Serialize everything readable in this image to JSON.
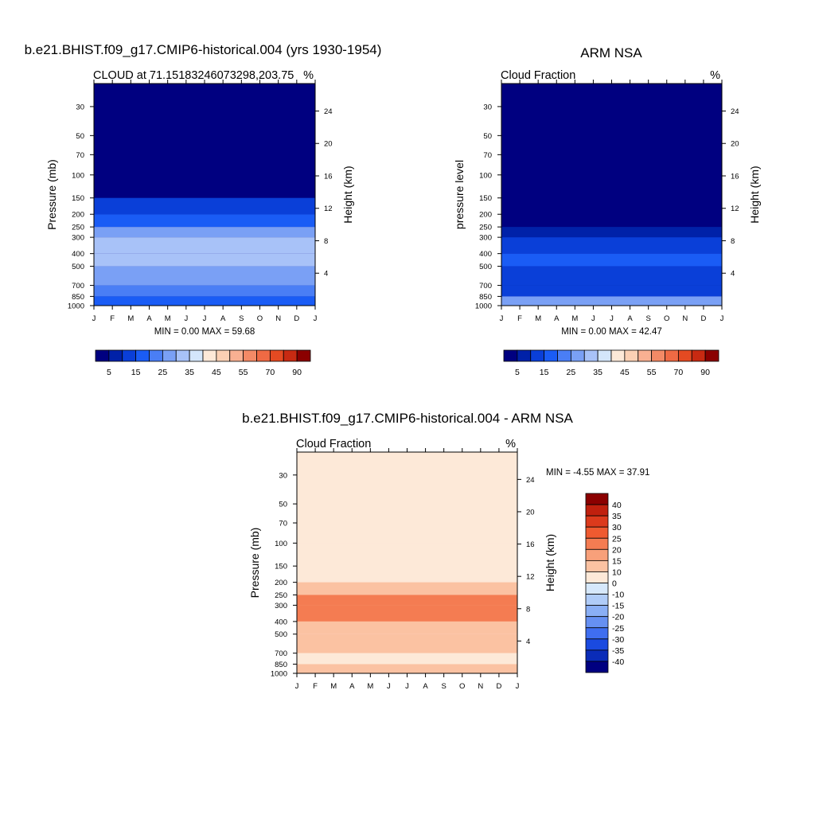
{
  "page_title": "",
  "chart_data": [
    {
      "id": "model",
      "type": "heatmap",
      "title": "b.e21.BHIST.f09_g17.CMIP6-historical.004 (yrs 1930-1954)",
      "subtitle_left": "CLOUD at 71.15183246073298,203.75",
      "subtitle_right": "%",
      "ylabel": "Pressure (mb)",
      "ylabel_right": "Height (km)",
      "x_ticks": [
        "J",
        "F",
        "M",
        "A",
        "M",
        "J",
        "J",
        "A",
        "S",
        "O",
        "N",
        "D",
        "J"
      ],
      "y_ticks": [
        30,
        50,
        70,
        100,
        150,
        200,
        250,
        300,
        400,
        500,
        700,
        850,
        1000
      ],
      "y_ticks_right": [
        24,
        20,
        16,
        12,
        8,
        4
      ],
      "ylim": [
        1000,
        20
      ],
      "minmax_text": "MIN =   0.00 MAX =  59.68",
      "colorbar_labels": [
        "5",
        "15",
        "25",
        "35",
        "45",
        "55",
        "70",
        "90"
      ],
      "colorbar_colors": [
        "#000080",
        "#0021a8",
        "#0a3fd8",
        "#1a5cf5",
        "#4a7ef5",
        "#7aa0f5",
        "#a8c2f8",
        "#d4e6fb",
        "#fde9d8",
        "#fbd0b4",
        "#f8b092",
        "#f48a66",
        "#ef6a44",
        "#e44a22",
        "#c82a12",
        "#8b0000"
      ],
      "profile": [
        {
          "p": 1000,
          "v": 18
        },
        {
          "p": 850,
          "v": 22
        },
        {
          "p": 700,
          "v": 26
        },
        {
          "p": 500,
          "v": 30
        },
        {
          "p": 400,
          "v": 33
        },
        {
          "p": 300,
          "v": 27
        },
        {
          "p": 250,
          "v": 18
        },
        {
          "p": 200,
          "v": 10
        },
        {
          "p": 150,
          "v": 3
        },
        {
          "p": 30,
          "v": 1
        }
      ]
    },
    {
      "id": "obs",
      "type": "heatmap",
      "title": "ARM NSA",
      "subtitle_left": "Cloud Fraction",
      "subtitle_right": "%",
      "ylabel": "pressure level",
      "ylabel_right": "Height (km)",
      "x_ticks": [
        "J",
        "F",
        "M",
        "A",
        "M",
        "J",
        "J",
        "A",
        "S",
        "O",
        "N",
        "D",
        "J"
      ],
      "y_ticks": [
        30,
        50,
        70,
        100,
        150,
        200,
        250,
        300,
        400,
        500,
        700,
        850,
        1000
      ],
      "y_ticks_right": [
        24,
        20,
        16,
        12,
        8,
        4
      ],
      "ylim": [
        1000,
        20
      ],
      "minmax_text": "MIN =   0.00 MAX =  42.47",
      "colorbar_labels": [
        "5",
        "15",
        "25",
        "35",
        "45",
        "55",
        "70",
        "90"
      ],
      "colorbar_colors": [
        "#000080",
        "#0021a8",
        "#0a3fd8",
        "#1a5cf5",
        "#4a7ef5",
        "#7aa0f5",
        "#a8c2f8",
        "#d4e6fb",
        "#fde9d8",
        "#fbd0b4",
        "#f8b092",
        "#f48a66",
        "#ef6a44",
        "#e44a22",
        "#c82a12",
        "#8b0000"
      ],
      "profile": [
        {
          "p": 1000,
          "v": 25
        },
        {
          "p": 850,
          "v": 14
        },
        {
          "p": 700,
          "v": 14
        },
        {
          "p": 500,
          "v": 16
        },
        {
          "p": 400,
          "v": 12
        },
        {
          "p": 300,
          "v": 7
        },
        {
          "p": 250,
          "v": 2
        },
        {
          "p": 30,
          "v": 1
        }
      ]
    },
    {
      "id": "diff",
      "type": "heatmap",
      "title": "b.e21.BHIST.f09_g17.CMIP6-historical.004 - ARM NSA",
      "subtitle_left": "Cloud Fraction",
      "subtitle_right": "%",
      "ylabel": "Pressure (mb)",
      "ylabel_right": "Height (km)",
      "x_ticks": [
        "J",
        "F",
        "M",
        "A",
        "M",
        "J",
        "J",
        "A",
        "S",
        "O",
        "N",
        "D",
        "J"
      ],
      "y_ticks": [
        30,
        50,
        70,
        100,
        150,
        200,
        250,
        300,
        400,
        500,
        700,
        850,
        1000
      ],
      "y_ticks_right": [
        24,
        20,
        16,
        12,
        8,
        4
      ],
      "ylim": [
        1000,
        20
      ],
      "minmax_text": "MIN =  -4.55 MAX =  37.91",
      "colorbar_labels": [
        "40",
        "35",
        "30",
        "25",
        "20",
        "15",
        "10",
        "0",
        "-10",
        "-15",
        "-20",
        "-25",
        "-30",
        "-35",
        "-40"
      ],
      "colorbar_colors": [
        "#8b0000",
        "#c0200e",
        "#dc3a1c",
        "#ef5a30",
        "#f47c52",
        "#f8a07a",
        "#fbc2a2",
        "#fde9d8",
        "#d6e8fb",
        "#b0ccf8",
        "#8aaff5",
        "#6690f2",
        "#3f6ef0",
        "#1a4ae0",
        "#0a2cb8",
        "#000080"
      ],
      "profile": [
        {
          "p": 1000,
          "v": 13
        },
        {
          "p": 850,
          "v": 8
        },
        {
          "p": 700,
          "v": 11
        },
        {
          "p": 500,
          "v": 14
        },
        {
          "p": 400,
          "v": 21
        },
        {
          "p": 300,
          "v": 22
        },
        {
          "p": 250,
          "v": 12
        },
        {
          "p": 200,
          "v": 6
        },
        {
          "p": 150,
          "v": 5
        },
        {
          "p": 100,
          "v": 4
        },
        {
          "p": 30,
          "v": 5
        }
      ]
    }
  ]
}
